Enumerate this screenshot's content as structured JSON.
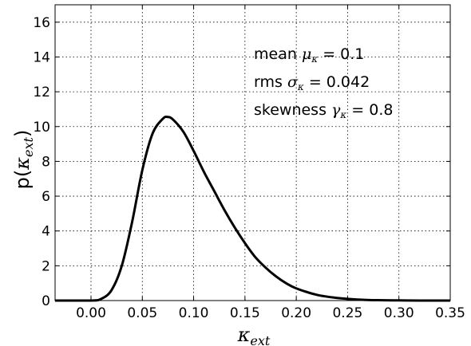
{
  "chart_data": {
    "type": "line",
    "title": "",
    "xlabel": "κ",
    "xlabel_sub": "ext",
    "ylabel_prefix": "p(",
    "ylabel_sym": "κ",
    "ylabel_sub": "ext",
    "ylabel_suffix": ")",
    "xlim": [
      -0.035,
      0.35
    ],
    "ylim": [
      0,
      17
    ],
    "xticks": [
      0.0,
      0.05,
      0.1,
      0.15,
      0.2,
      0.25,
      0.3,
      0.35
    ],
    "xtick_labels": [
      "0.00",
      "0.05",
      "0.10",
      "0.15",
      "0.20",
      "0.25",
      "0.30",
      "0.35"
    ],
    "yticks": [
      0,
      2,
      4,
      6,
      8,
      10,
      12,
      14,
      16
    ],
    "ytick_labels": [
      "0",
      "2",
      "4",
      "6",
      "8",
      "10",
      "12",
      "14",
      "16"
    ],
    "grid": true,
    "grid_style": "dotted",
    "line_color": "#000000",
    "series": [
      {
        "x": [
          0.0,
          0.01,
          0.02,
          0.03,
          0.04,
          0.05,
          0.06,
          0.07,
          0.075,
          0.08,
          0.09,
          0.1,
          0.11,
          0.12,
          0.13,
          0.14,
          0.15,
          0.16,
          0.17,
          0.18,
          0.19,
          0.2,
          0.22,
          0.24,
          0.26,
          0.28,
          0.3,
          0.32,
          0.35
        ],
        "y": [
          0.0,
          0.1,
          0.6,
          2.0,
          4.5,
          7.5,
          9.6,
          10.45,
          10.55,
          10.4,
          9.7,
          8.6,
          7.4,
          6.3,
          5.2,
          4.2,
          3.3,
          2.5,
          1.9,
          1.4,
          1.0,
          0.7,
          0.33,
          0.15,
          0.06,
          0.02,
          0.01,
          0.0,
          0.0
        ]
      }
    ],
    "annotations": [
      {
        "prefix": "mean ",
        "symbol": "μ",
        "sub": "κ",
        "suffix": " = 0.1"
      },
      {
        "prefix": "rms ",
        "symbol": "σ",
        "sub": "κ",
        "suffix": " = 0.042"
      },
      {
        "prefix": "skewness ",
        "symbol": "γ",
        "sub": "κ",
        "suffix": " = 0.8"
      }
    ]
  }
}
